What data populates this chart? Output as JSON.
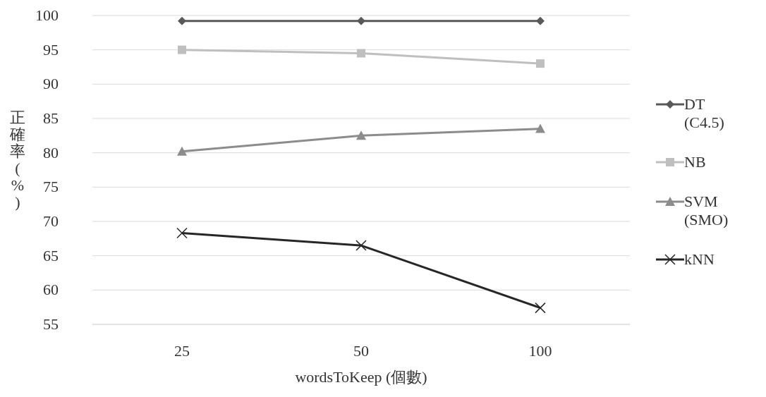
{
  "chart_data": {
    "type": "line",
    "xlabel": "wordsToKeep (個數)",
    "ylabel": "正確率(%)",
    "categories": [
      "25",
      "50",
      "100"
    ],
    "ylim": [
      55,
      100
    ],
    "yticks": [
      55,
      60,
      65,
      70,
      75,
      80,
      85,
      90,
      95,
      100
    ],
    "grid": "y",
    "legend": "right",
    "series": [
      {
        "name": "DT (C4.5)",
        "color": "#595959",
        "marker": "diamond",
        "values": [
          99.2,
          99.2,
          99.2
        ]
      },
      {
        "name": "NB",
        "color": "#bfbfbf",
        "marker": "square",
        "values": [
          95.0,
          94.5,
          93.0
        ]
      },
      {
        "name": "SVM (SMO)",
        "color": "#8c8c8c",
        "marker": "triangle",
        "values": [
          80.2,
          82.5,
          83.5
        ]
      },
      {
        "name": "kNN",
        "color": "#262626",
        "marker": "cross",
        "values": [
          68.3,
          66.5,
          57.4
        ]
      }
    ]
  }
}
